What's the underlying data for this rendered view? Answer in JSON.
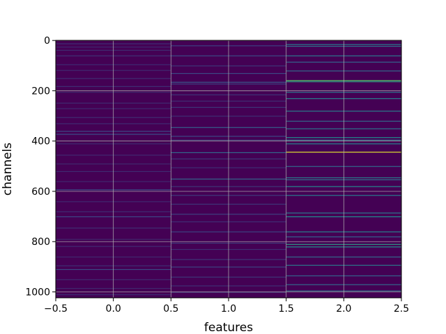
{
  "chart_data": {
    "type": "heatmap",
    "title": "",
    "xlabel": "features",
    "ylabel": "channels",
    "xlim": [
      -0.5,
      2.5
    ],
    "ylim": [
      1023.5,
      -0.5
    ],
    "xticks": [
      "−0.5",
      "0.0",
      "0.5",
      "1.0",
      "1.5",
      "2.0",
      "2.5"
    ],
    "xtick_values": [
      -0.5,
      0.0,
      0.5,
      1.0,
      1.5,
      2.0,
      2.5
    ],
    "yticks": [
      "0",
      "200",
      "400",
      "600",
      "800",
      "1000"
    ],
    "ytick_values": [
      0,
      200,
      400,
      600,
      800,
      1000
    ],
    "grid": true,
    "colormap": "viridis",
    "colormap_stops": [
      "#440154",
      "#3b528b",
      "#21918c",
      "#5ec962",
      "#fde725"
    ],
    "background_color": "#440154",
    "n_rows": 1024,
    "columns": [
      {
        "feature": 0,
        "highlights": [
          [
            12,
            0.14
          ],
          [
            25,
            0.12
          ],
          [
            38,
            0.13
          ],
          [
            60,
            0.15
          ],
          [
            95,
            0.13
          ],
          [
            118,
            0.12
          ],
          [
            150,
            0.13
          ],
          [
            182,
            0.14
          ],
          [
            205,
            0.12
          ],
          [
            248,
            0.13
          ],
          [
            270,
            0.12
          ],
          [
            305,
            0.13
          ],
          [
            330,
            0.13
          ],
          [
            360,
            0.22
          ],
          [
            372,
            0.24
          ],
          [
            410,
            0.13
          ],
          [
            455,
            0.12
          ],
          [
            490,
            0.12
          ],
          [
            520,
            0.13
          ],
          [
            560,
            0.12
          ],
          [
            593,
            0.24
          ],
          [
            640,
            0.12
          ],
          [
            680,
            0.13
          ],
          [
            700,
            0.22
          ],
          [
            745,
            0.14
          ],
          [
            790,
            0.12
          ],
          [
            818,
            0.13
          ],
          [
            860,
            0.12
          ],
          [
            895,
            0.14
          ],
          [
            910,
            0.22
          ],
          [
            950,
            0.13
          ],
          [
            985,
            0.12
          ],
          [
            1010,
            0.13
          ]
        ]
      },
      {
        "feature": 1,
        "highlights": [
          [
            20,
            0.2
          ],
          [
            60,
            0.22
          ],
          [
            100,
            0.16
          ],
          [
            130,
            0.22
          ],
          [
            165,
            0.28
          ],
          [
            172,
            0.2
          ],
          [
            215,
            0.16
          ],
          [
            240,
            0.14
          ],
          [
            265,
            0.16
          ],
          [
            300,
            0.14
          ],
          [
            345,
            0.3
          ],
          [
            380,
            0.22
          ],
          [
            395,
            0.18
          ],
          [
            445,
            0.34
          ],
          [
            470,
            0.16
          ],
          [
            505,
            0.14
          ],
          [
            550,
            0.32
          ],
          [
            580,
            0.16
          ],
          [
            615,
            0.18
          ],
          [
            650,
            0.16
          ],
          [
            690,
            0.2
          ],
          [
            720,
            0.14
          ],
          [
            760,
            0.2
          ],
          [
            805,
            0.18
          ],
          [
            830,
            0.14
          ],
          [
            870,
            0.16
          ],
          [
            900,
            0.2
          ],
          [
            940,
            0.16
          ],
          [
            975,
            0.14
          ],
          [
            1000,
            0.2
          ]
        ]
      },
      {
        "feature": 2,
        "highlights": [
          [
            15,
            0.42
          ],
          [
            22,
            0.36
          ],
          [
            60,
            0.4
          ],
          [
            85,
            0.32
          ],
          [
            120,
            0.34
          ],
          [
            158,
            0.72
          ],
          [
            163,
            0.55
          ],
          [
            205,
            0.38
          ],
          [
            230,
            0.44
          ],
          [
            280,
            0.42
          ],
          [
            320,
            0.34
          ],
          [
            350,
            0.4
          ],
          [
            385,
            0.48
          ],
          [
            395,
            0.38
          ],
          [
            410,
            0.44
          ],
          [
            443,
            0.95
          ],
          [
            500,
            0.34
          ],
          [
            545,
            0.42
          ],
          [
            553,
            0.38
          ],
          [
            580,
            0.46
          ],
          [
            615,
            0.42
          ],
          [
            685,
            0.4
          ],
          [
            700,
            0.5
          ],
          [
            760,
            0.44
          ],
          [
            780,
            0.32
          ],
          [
            810,
            0.55
          ],
          [
            820,
            0.5
          ],
          [
            860,
            0.34
          ],
          [
            893,
            0.4
          ],
          [
            935,
            0.32
          ],
          [
            970,
            0.34
          ],
          [
            995,
            0.36
          ]
        ]
      }
    ]
  }
}
